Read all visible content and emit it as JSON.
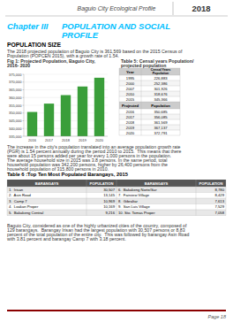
{
  "chart_data": {
    "type": "bar",
    "title": [
      "Fig 1: Projected Population, Baguio City,",
      "2016- 2020"
    ],
    "categories": [
      "2016",
      "2017",
      "2018",
      "2019",
      "2020"
    ],
    "values": [
      350685,
      356085,
      361569,
      367137,
      372791
    ],
    "color": "#3a9e3a",
    "ylim": [
      335000,
      375000
    ],
    "yticks": [
      {
        "value": 335000,
        "label": "335,000"
      },
      {
        "value": 340000,
        "label": "340,000"
      },
      {
        "value": 345000,
        "label": "345,000"
      },
      {
        "value": 350000,
        "label": "350,000"
      },
      {
        "value": 355000,
        "label": "355,000"
      },
      {
        "value": 360000,
        "label": "360,000"
      },
      {
        "value": 365000,
        "label": "365,000"
      },
      {
        "value": 370000,
        "label": "370,000"
      },
      {
        "value": 375000,
        "label": "375,000"
      }
    ],
    "grid": true
  },
  "page": {
    "title_header": "Baguio City Ecological Profile",
    "year_header": "2018",
    "chapter_label": "Chapter III",
    "chapter_title": [
      "POPULATION AND SOCIAL",
      "PROFILE"
    ],
    "section_title": "POPULATION SIZE",
    "intro_text": [
      "The 2018 projected population of Baguio City is 361,569 based on the 2015 Census of",
      "Population (POPCEN 2015), with a growth rate of 1.54."
    ],
    "pgr_text": [
      "The increase in the city's population translated into an average population growth rate",
      "(PGR) is 1.54 percent annually during the period 2010 to 2015.  This means that there",
      "were about 15 persons added per year for every 1,000 persons in the population."
    ],
    "hh_text": [
      "The average household size in 2015 was 3.8 persons. In the same period, total",
      "household population was 342,200 persons, higher by 26,400 persons from the",
      "household population of 315,800 persons in 2010."
    ],
    "footer_text": [
      "Baguio City, considered as one of the highly urbanized cities of the country, composed of",
      "129 barangays.  Barangay Irisan had the largest population with 30,507 persons or 8.83",
      "percent of the total population of the entire city.  This was followed by barangay Asin Road",
      "with 3.81 percent and barangay Camp 7 with 3.18 percent."
    ],
    "page_label": "Page 18"
  },
  "tables": {
    "table5": {
      "title": [
        "Table 5: Censal years Population/",
        "projected population"
      ],
      "sections": [
        {
          "header": [
            "Year",
            [
              "Censal Years",
              "Population"
            ]
          ],
          "rows": [
            [
              "1995",
              "226,883"
            ],
            [
              "2000",
              "252,386"
            ],
            [
              "2007",
              "301,926"
            ],
            [
              "2010",
              "318,676"
            ],
            [
              "2015",
              "345,366"
            ]
          ]
        },
        {
          "header": [
            "Projected",
            "Population"
          ],
          "rows": [
            [
              "2016",
              "350,685"
            ],
            [
              "2017",
              "356,085"
            ],
            [
              "2018",
              "361,569"
            ],
            [
              "2019",
              "367,137"
            ],
            [
              "2020",
              "372,791"
            ]
          ]
        }
      ]
    },
    "table6": {
      "title": "Table 6 :Top Ten Most Populated Barangays, 2015",
      "headers": [
        "BARANGAYS",
        "POPULATION",
        "BARANGAYS",
        "POPULATION"
      ],
      "left": [
        [
          "1.  Irisan",
          "30,507"
        ],
        [
          "2.  Asin Road",
          "13,145"
        ],
        [
          "3.  Camp 7",
          "10,969"
        ],
        [
          "4.  Loakan Proper",
          "10,169"
        ],
        [
          "5.  Bakakeng Central",
          "9,216"
        ]
      ],
      "right": [
        [
          "6.  Bakakeng Norte/Sur",
          "8,780"
        ],
        [
          "7.  Fairview Village",
          "8,429"
        ],
        [
          "8.  Gibraltar",
          "7,613"
        ],
        [
          "9.  San Luis Village",
          "7,529"
        ],
        [
          "10. Sto. Tomas Proper",
          "7,058"
        ]
      ]
    }
  }
}
